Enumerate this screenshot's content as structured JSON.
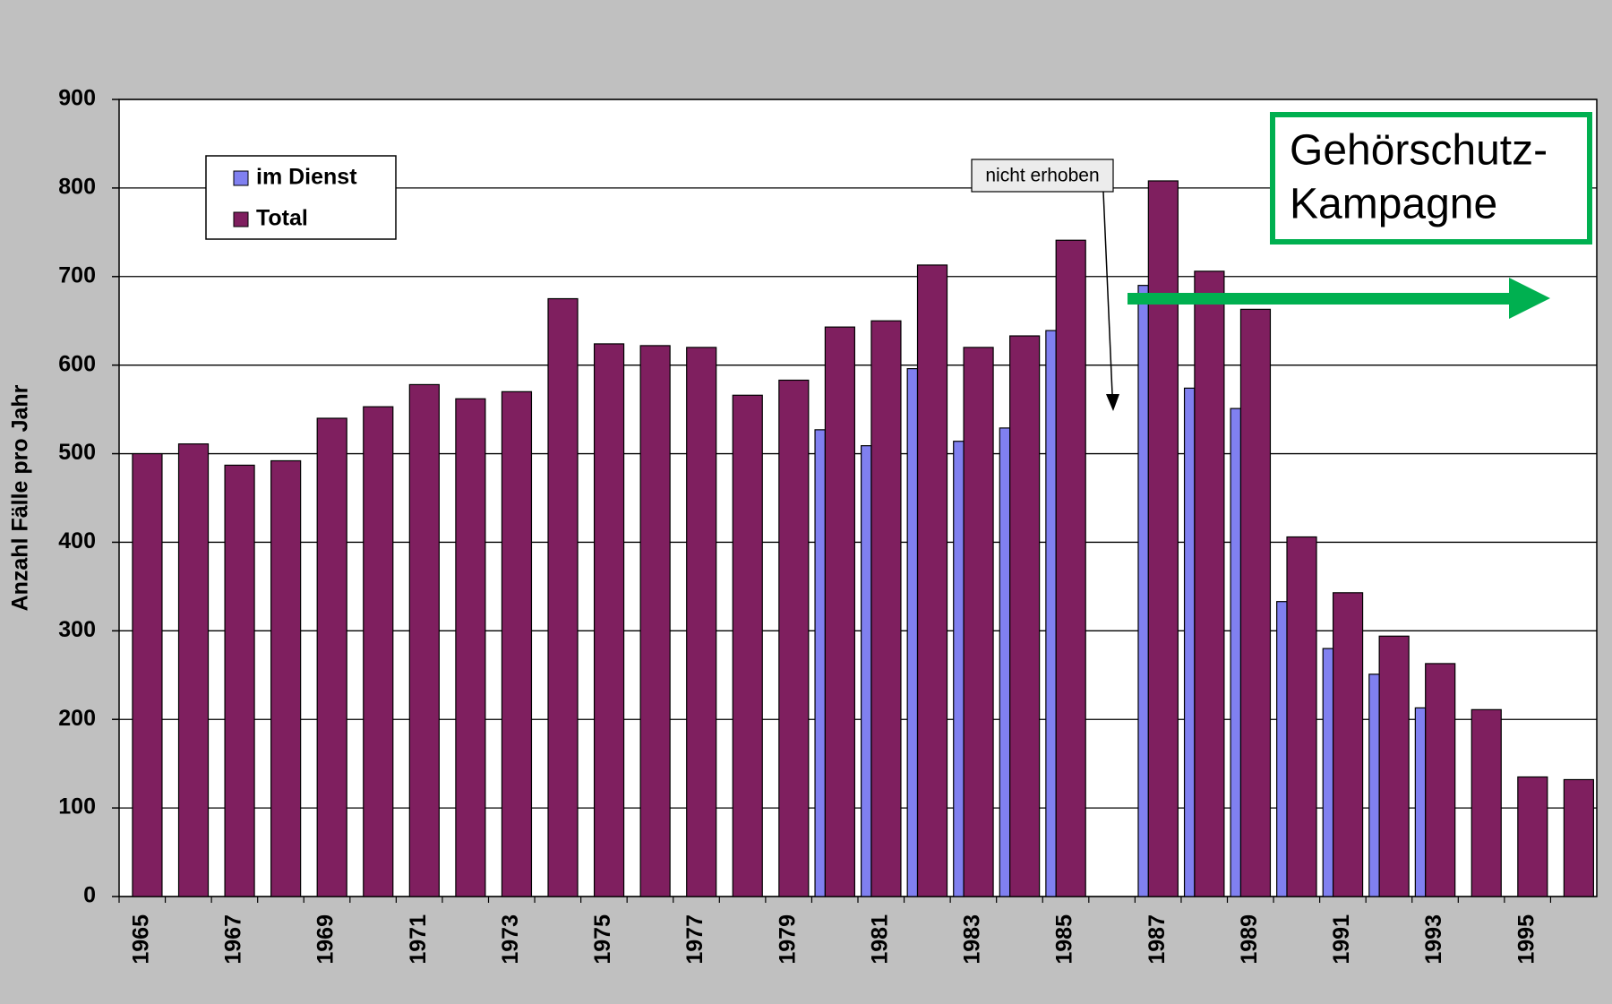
{
  "chart_data": {
    "type": "bar",
    "y_label": "Anzahl Fälle pro Jahr",
    "categories": [
      "1965",
      null,
      "1967",
      null,
      "1969",
      null,
      "1971",
      null,
      "1973",
      null,
      "1975",
      null,
      "1977",
      null,
      "1979",
      null,
      "1981",
      null,
      "1983",
      null,
      "1985",
      null,
      "1987",
      null,
      "1989",
      null,
      "1991",
      null,
      "1993",
      null,
      "1995",
      null
    ],
    "series": [
      {
        "name": "im Dienst",
        "color": "#8080f0",
        "values": [
          null,
          null,
          null,
          null,
          null,
          null,
          null,
          null,
          null,
          null,
          null,
          null,
          null,
          null,
          null,
          527,
          509,
          596,
          514,
          529,
          639,
          null,
          690,
          574,
          551,
          333,
          280,
          251,
          213,
          null,
          null,
          null
        ]
      },
      {
        "name": "Total",
        "color": "#7f1f5f",
        "values": [
          500,
          511,
          487,
          492,
          540,
          553,
          578,
          562,
          570,
          675,
          624,
          622,
          620,
          566,
          583,
          643,
          650,
          713,
          620,
          633,
          741,
          null,
          808,
          706,
          663,
          406,
          343,
          294,
          263,
          211,
          135,
          132
        ]
      }
    ],
    "ylim": [
      0,
      900
    ],
    "yticks": [
      0,
      100,
      200,
      300,
      400,
      500,
      600,
      700,
      800,
      900
    ],
    "grid": true,
    "legend": "top-left",
    "annotations": [
      "nicht erhoben",
      [
        "Gehörschutz-",
        "Kampagne"
      ]
    ]
  }
}
